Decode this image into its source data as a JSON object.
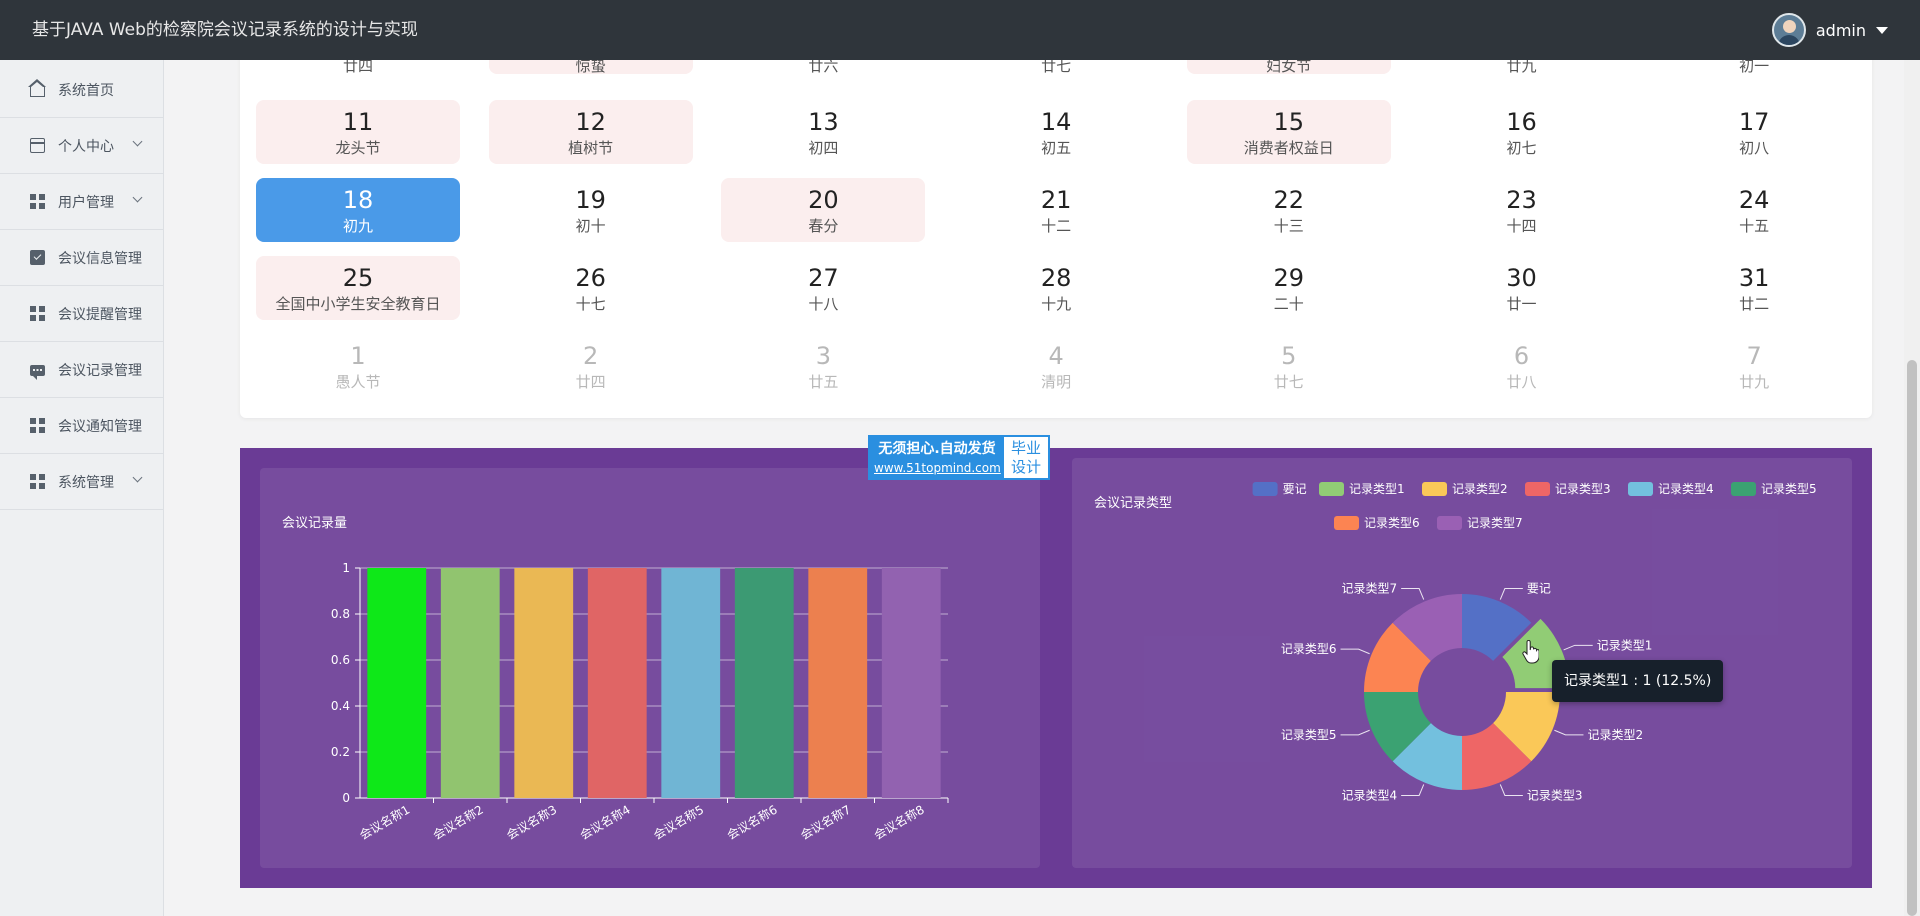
{
  "header": {
    "title": "基于JAVA Web的检察院会议记录系统的设计与实现",
    "username": "admin"
  },
  "sidebar": {
    "items": [
      {
        "label": "系统首页",
        "icon": "home-icon",
        "chevron": false
      },
      {
        "label": "个人中心",
        "icon": "id-card-icon",
        "chevron": true
      },
      {
        "label": "用户管理",
        "icon": "grid-icon",
        "chevron": true
      },
      {
        "label": "会议信息管理",
        "icon": "clipboard-check-icon",
        "chevron": false
      },
      {
        "label": "会议提醒管理",
        "icon": "grid-icon",
        "chevron": false
      },
      {
        "label": "会议记录管理",
        "icon": "chat-icon",
        "chevron": false
      },
      {
        "label": "会议通知管理",
        "icon": "grid-icon",
        "chevron": false
      },
      {
        "label": "系统管理",
        "icon": "grid-icon",
        "chevron": true
      }
    ]
  },
  "calendar": {
    "rows": [
      [
        {
          "day": "",
          "lunar": "廿四",
          "fest": false
        },
        {
          "day": "",
          "lunar": "惊蛰",
          "fest": true
        },
        {
          "day": "",
          "lunar": "廿六",
          "fest": false
        },
        {
          "day": "",
          "lunar": "廿七",
          "fest": false
        },
        {
          "day": "",
          "lunar": "妇女节",
          "fest": true
        },
        {
          "day": "",
          "lunar": "廿九",
          "fest": false
        },
        {
          "day": "",
          "lunar": "初一",
          "fest": false
        }
      ],
      [
        {
          "day": "11",
          "lunar": "龙头节",
          "fest": true
        },
        {
          "day": "12",
          "lunar": "植树节",
          "fest": true
        },
        {
          "day": "13",
          "lunar": "初四",
          "fest": false
        },
        {
          "day": "14",
          "lunar": "初五",
          "fest": false
        },
        {
          "day": "15",
          "lunar": "消费者权益日",
          "fest": true
        },
        {
          "day": "16",
          "lunar": "初七",
          "fest": false
        },
        {
          "day": "17",
          "lunar": "初八",
          "fest": false
        }
      ],
      [
        {
          "day": "18",
          "lunar": "初九",
          "fest": false,
          "today": true
        },
        {
          "day": "19",
          "lunar": "初十",
          "fest": false
        },
        {
          "day": "20",
          "lunar": "春分",
          "fest": true
        },
        {
          "day": "21",
          "lunar": "十二",
          "fest": false
        },
        {
          "day": "22",
          "lunar": "十三",
          "fest": false
        },
        {
          "day": "23",
          "lunar": "十四",
          "fest": false
        },
        {
          "day": "24",
          "lunar": "十五",
          "fest": false
        }
      ],
      [
        {
          "day": "25",
          "lunar": "全国中小学生安全教育日",
          "fest": true
        },
        {
          "day": "26",
          "lunar": "十七",
          "fest": false
        },
        {
          "day": "27",
          "lunar": "十八",
          "fest": false
        },
        {
          "day": "28",
          "lunar": "十九",
          "fest": false
        },
        {
          "day": "29",
          "lunar": "二十",
          "fest": false
        },
        {
          "day": "30",
          "lunar": "廿一",
          "fest": false
        },
        {
          "day": "31",
          "lunar": "廿二",
          "fest": false
        }
      ],
      [
        {
          "day": "1",
          "lunar": "愚人节",
          "fest": false,
          "dim": true
        },
        {
          "day": "2",
          "lunar": "廿四",
          "fest": false,
          "dim": true
        },
        {
          "day": "3",
          "lunar": "廿五",
          "fest": false,
          "dim": true
        },
        {
          "day": "4",
          "lunar": "清明",
          "fest": false,
          "dim": true
        },
        {
          "day": "5",
          "lunar": "廿七",
          "fest": false,
          "dim": true
        },
        {
          "day": "6",
          "lunar": "廿八",
          "fest": false,
          "dim": true
        },
        {
          "day": "7",
          "lunar": "廿九",
          "fest": false,
          "dim": true
        }
      ]
    ]
  },
  "watermark": {
    "line1": "无须担心.自动发货",
    "line2": "www.51topmind.com",
    "side": "毕业设计"
  },
  "chart_data": [
    {
      "type": "bar",
      "title": "会议记录量",
      "categories": [
        "会议名称1",
        "会议名称2",
        "会议名称3",
        "会议名称4",
        "会议名称5",
        "会议名称6",
        "会议名称7",
        "会议名称8"
      ],
      "values": [
        1,
        1,
        1,
        1,
        1,
        1,
        1,
        1
      ],
      "colors": [
        "#0ee818",
        "#91c46f",
        "#eab854",
        "#e06565",
        "#70b5d4",
        "#3c9a73",
        "#ec804f",
        "#9262b0"
      ],
      "ylim": [
        0,
        1
      ],
      "yticks": [
        "0",
        "0.2",
        "0.4",
        "0.6",
        "0.8",
        "1"
      ],
      "grid": true
    },
    {
      "type": "pie",
      "title": "会议记录类型",
      "legend_position": "top-right",
      "slices": [
        {
          "name": "要记",
          "value": 1,
          "color": "#5470c6"
        },
        {
          "name": "记录类型1",
          "value": 1,
          "color": "#91cc75"
        },
        {
          "name": "记录类型2",
          "value": 1,
          "color": "#fac858"
        },
        {
          "name": "记录类型3",
          "value": 1,
          "color": "#ee6666"
        },
        {
          "name": "记录类型4",
          "value": 1,
          "color": "#73c0de"
        },
        {
          "name": "记录类型5",
          "value": 1,
          "color": "#3ba272"
        },
        {
          "name": "记录类型6",
          "value": 1,
          "color": "#fc8452"
        },
        {
          "name": "记录类型7",
          "value": 1,
          "color": "#9a60b4"
        }
      ],
      "tooltip": "记录类型1 : 1 (12.5%)"
    }
  ]
}
